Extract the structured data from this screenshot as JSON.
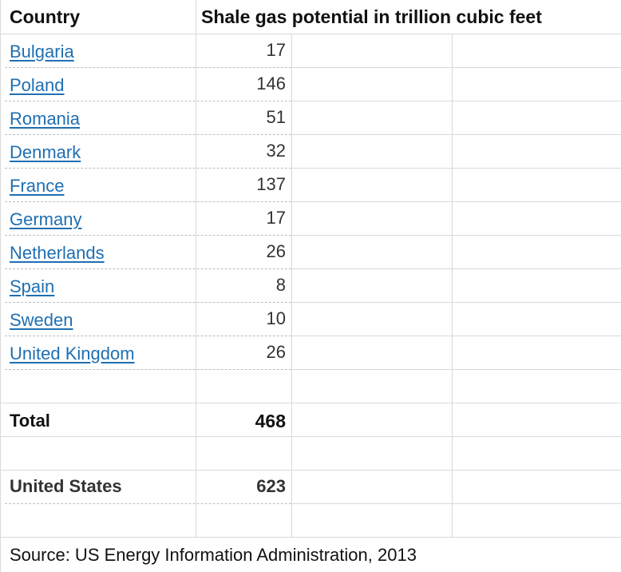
{
  "header": {
    "country": "Country",
    "potential": "Shale gas potential in trillion cubic feet"
  },
  "rows": [
    {
      "country": "Bulgaria",
      "value": "17"
    },
    {
      "country": "Poland",
      "value": "146"
    },
    {
      "country": "Romania",
      "value": "51"
    },
    {
      "country": "Denmark",
      "value": "32"
    },
    {
      "country": "France",
      "value": "137"
    },
    {
      "country": "Germany",
      "value": "17"
    },
    {
      "country": "Netherlands",
      "value": "26"
    },
    {
      "country": "Spain",
      "value": "8"
    },
    {
      "country": "Sweden",
      "value": "10"
    },
    {
      "country": "United Kingdom",
      "value": "26"
    }
  ],
  "total": {
    "label": "Total",
    "value": "468"
  },
  "united_states": {
    "label": "United States",
    "value": "623"
  },
  "source": "Source: US Energy Information Administration, 2013",
  "colors": {
    "link": "#1f6fb2",
    "grid": "#d9d9d9"
  }
}
